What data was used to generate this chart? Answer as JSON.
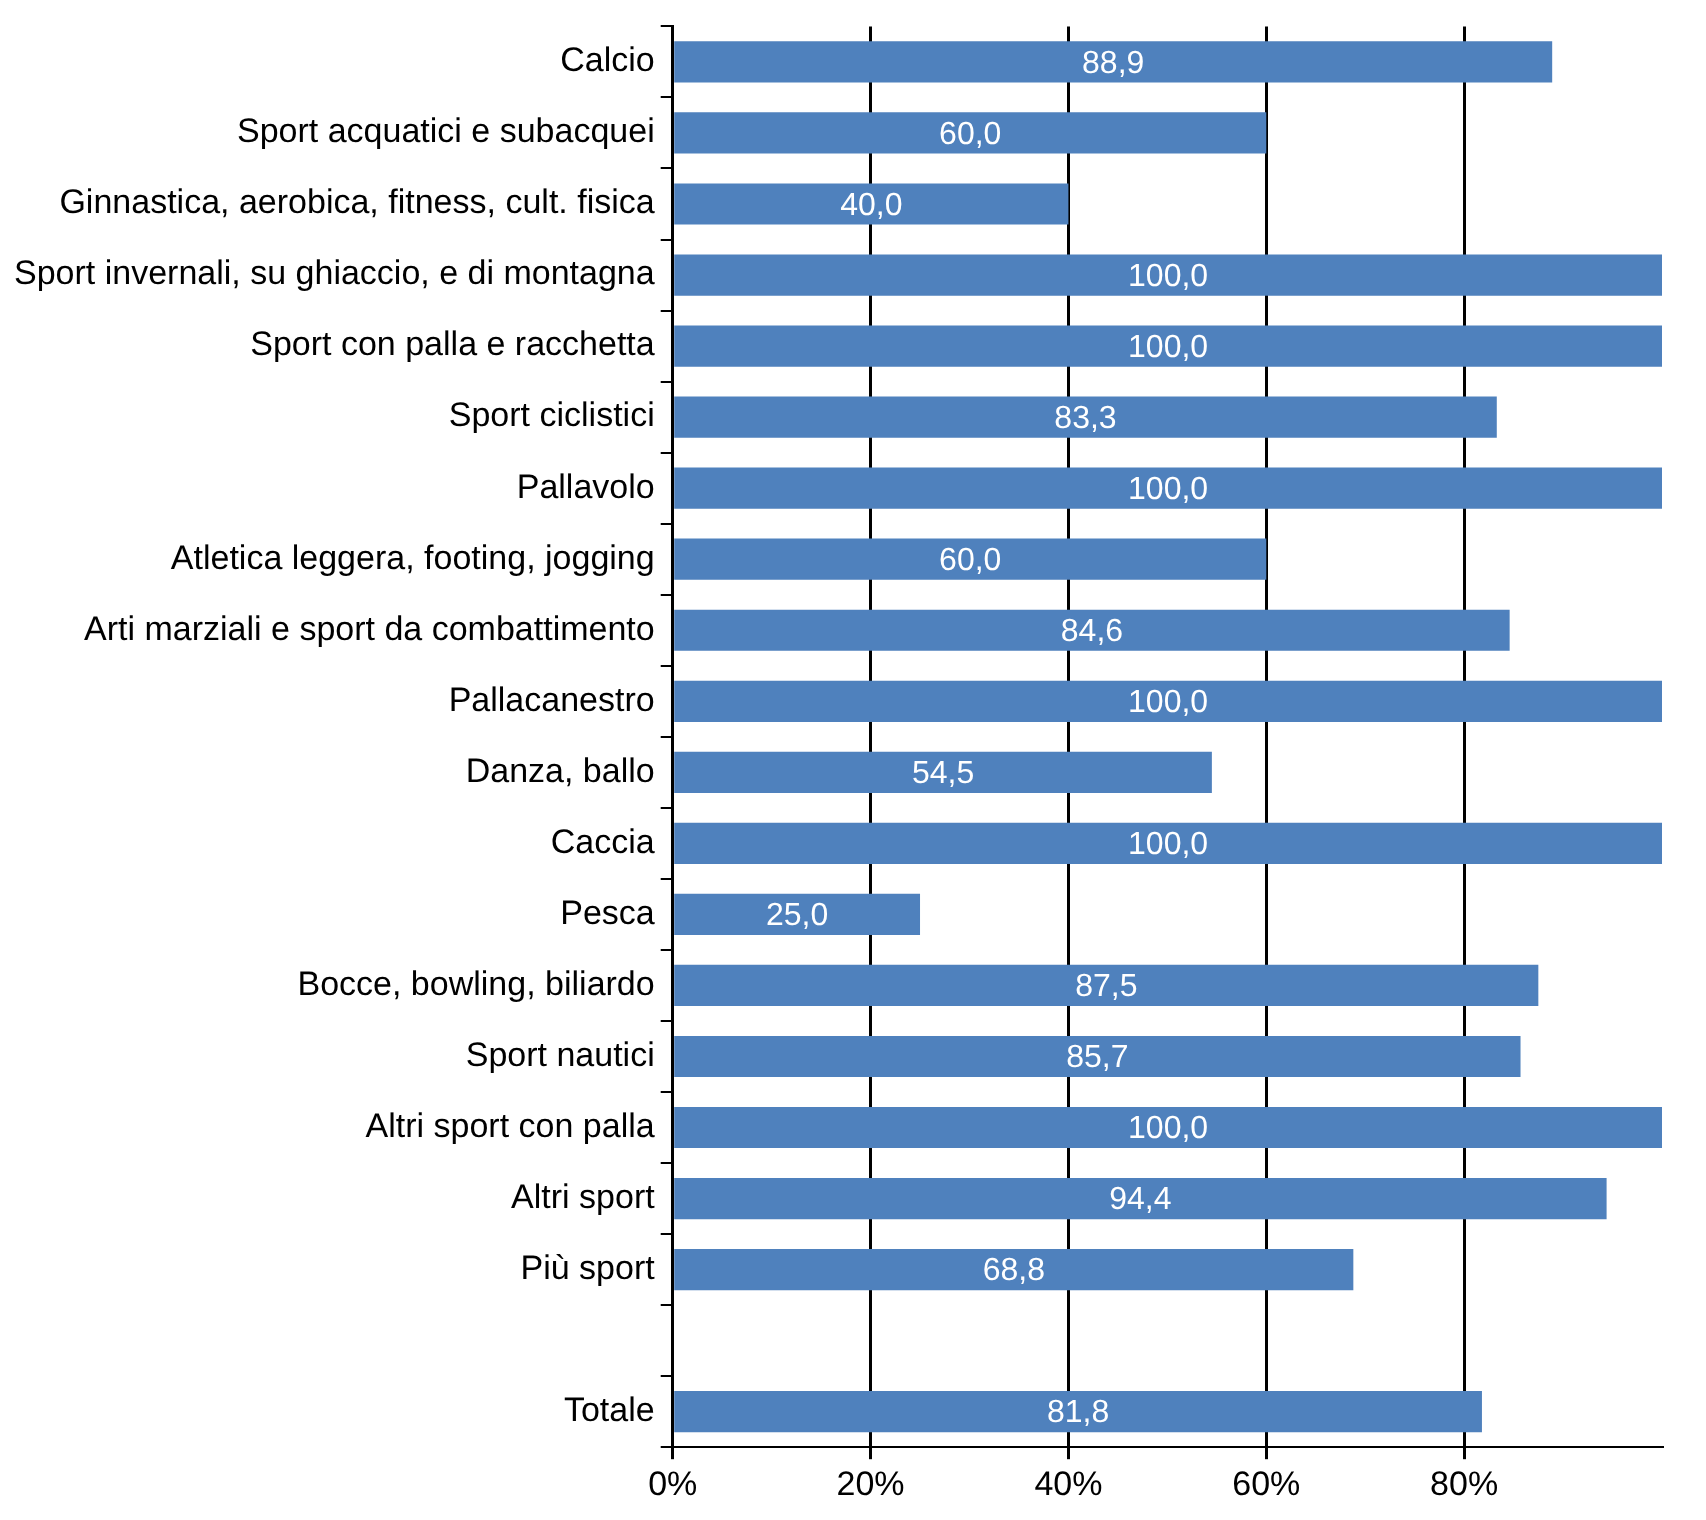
{
  "chart_data": {
    "type": "bar",
    "orientation": "horizontal",
    "categories": [
      "Calcio",
      "Sport acquatici e subacquei",
      "Ginnastica, aerobica, fitness, cult. fisica",
      "Sport invernali, su ghiaccio, e di montagna",
      "Sport con palla e racchetta",
      "Sport ciclistici",
      "Pallavolo",
      "Atletica leggera, footing, jogging",
      "Arti marziali e sport da combattimento",
      "Pallacanestro",
      "Danza, ballo",
      "Caccia",
      "Pesca",
      "Bocce, bowling, biliardo",
      "Sport nautici",
      "Altri sport con palla",
      "Altri sport",
      "Più sport",
      null,
      "Totale"
    ],
    "values": [
      88.9,
      60.0,
      40.0,
      100.0,
      100.0,
      83.3,
      100.0,
      60.0,
      84.6,
      100.0,
      54.5,
      100.0,
      25.0,
      87.5,
      85.7,
      100.0,
      94.4,
      68.8,
      null,
      81.8
    ],
    "value_labels": [
      "88,9",
      "60,0",
      "40,0",
      "100,0",
      "100,0",
      "83,3",
      "100,0",
      "60,0",
      "84,6",
      "100,0",
      "54,5",
      "100,0",
      "25,0",
      "87,5",
      "85,7",
      "100,0",
      "94,4",
      "68,8",
      null,
      "81,8"
    ],
    "color": "#4f81bd",
    "xlim": [
      0,
      100
    ],
    "xticks": [
      {
        "value": 0,
        "label": "0%"
      },
      {
        "value": 20,
        "label": "20%"
      },
      {
        "value": 40,
        "label": "40%"
      },
      {
        "value": 60,
        "label": "60%"
      },
      {
        "value": 80,
        "label": "80%"
      }
    ],
    "grid": "x",
    "legend": false
  }
}
